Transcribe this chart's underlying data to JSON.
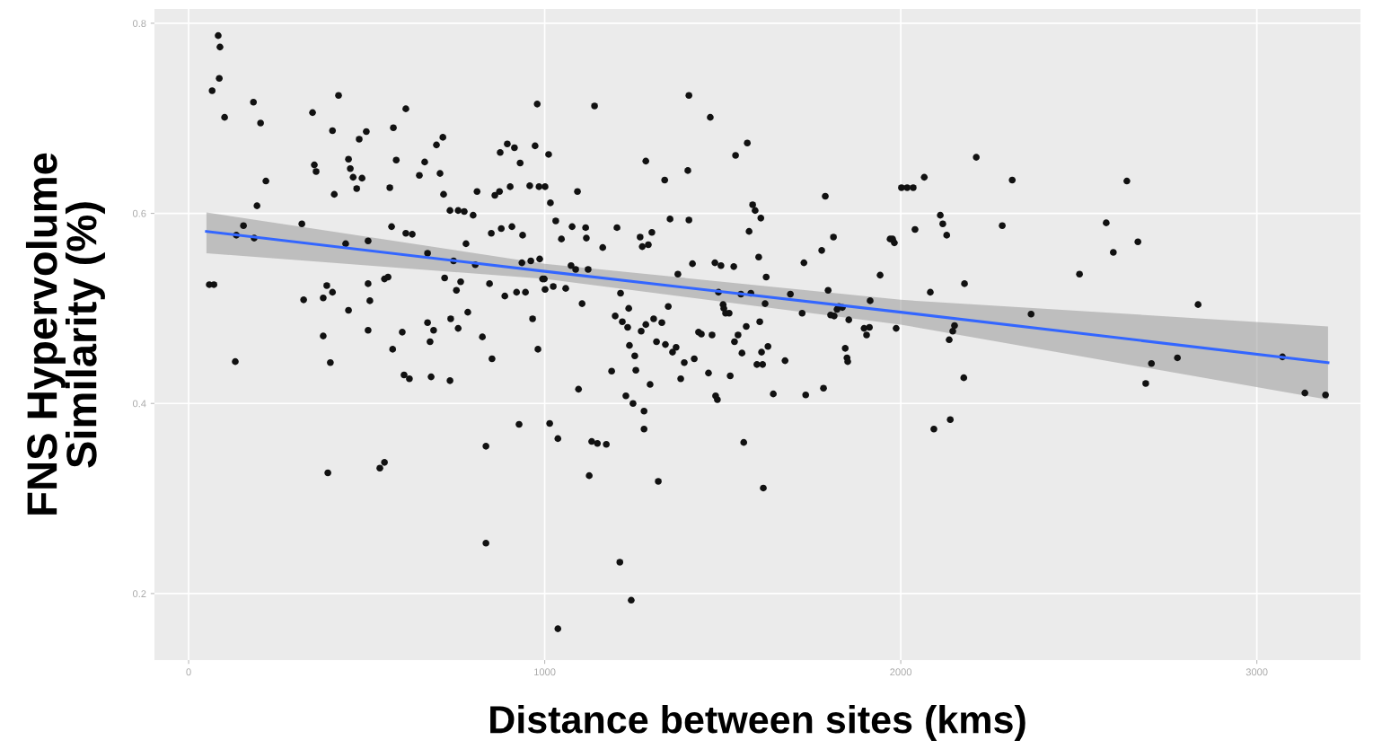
{
  "chart_data": {
    "type": "scatter",
    "xlabel": "Distance between sites (kms)",
    "ylabel": "FNS Hypervolume\nSimilarity (%)",
    "xlim": [
      -96,
      3291
    ],
    "ylim": [
      0.13,
      0.815
    ],
    "xticks": [
      0,
      1000,
      2000,
      3000
    ],
    "yticks": [
      0.2,
      0.4,
      0.6,
      0.8
    ],
    "grid": true,
    "series": [
      {
        "type": "scatter",
        "color": "#111111",
        "marker": "circle",
        "x": [
          58,
          71,
          66,
          83,
          88,
          86,
          101,
          131,
          134,
          154,
          182,
          202,
          192,
          217,
          184,
          318,
          323,
          348,
          353,
          358,
          378,
          378,
          388,
          391,
          398,
          404,
          404,
          409,
          421,
          441,
          449,
          449,
          454,
          462,
          472,
          479,
          487,
          499,
          504,
          509,
          504,
          504,
          537,
          550,
          550,
          560,
          570,
          565,
          573,
          575,
          583,
          600,
          605,
          610,
          610,
          628,
          620,
          648,
          671,
          663,
          671,
          678,
          688,
          681,
          696,
          706,
          714,
          716,
          719,
          734,
          734,
          736,
          744,
          752,
          757,
          757,
          764,
          774,
          779,
          784,
          799,
          805,
          810,
          825,
          835,
          835,
          845,
          850,
          852,
          860,
          873,
          875,
          878,
          888,
          895,
          903,
          908,
          915,
          921,
          928,
          931,
          936,
          938,
          946,
          958,
          961,
          966,
          973,
          979,
          981,
          984,
          986,
          994,
          999,
          1001,
          1001,
          1011,
          1014,
          1016,
          1024,
          1031,
          1037,
          1037,
          1047,
          1059,
          1074,
          1077,
          1087,
          1092,
          1095,
          1105,
          1115,
          1117,
          1122,
          1125,
          1132,
          1140,
          1148,
          1163,
          1173,
          1188,
          1198,
          1203,
          1211,
          1213,
          1218,
          1228,
          1233,
          1236,
          1238,
          1243,
          1248,
          1253,
          1256,
          1268,
          1271,
          1274,
          1279,
          1279,
          1284,
          1284,
          1291,
          1296,
          1301,
          1306,
          1314,
          1319,
          1329,
          1337,
          1339,
          1347,
          1352,
          1359,
          1369,
          1374,
          1382,
          1392,
          1402,
          1405,
          1405,
          1415,
          1420,
          1432,
          1440,
          1460,
          1465,
          1470,
          1478,
          1480,
          1485,
          1488,
          1495,
          1501,
          1503,
          1508,
          1518,
          1521,
          1531,
          1533,
          1536,
          1543,
          1551,
          1554,
          1559,
          1566,
          1569,
          1574,
          1579,
          1584,
          1591,
          1596,
          1601,
          1604,
          1607,
          1609,
          1612,
          1614,
          1619,
          1622,
          1627,
          1642,
          1675,
          1690,
          1723,
          1728,
          1733,
          1778,
          1783,
          1788,
          1796,
          1803,
          1811,
          1813,
          1821,
          1826,
          1836,
          1844,
          1849,
          1854,
          1851,
          1897,
          1904,
          1912,
          1914,
          1942,
          1970,
          1977,
          1982,
          1987,
          2002,
          2018,
          2035,
          2040,
          2066,
          2083,
          2093,
          2111,
          2118,
          2129,
          2136,
          2139,
          2146,
          2151,
          2177,
          2179,
          2212,
          2285,
          2313,
          2366,
          2502,
          2577,
          2597,
          2635,
          2666,
          2688,
          2704,
          2777,
          2835,
          3072,
          3135,
          3193
        ],
        "values": [
          0.525,
          0.525,
          0.729,
          0.787,
          0.775,
          0.742,
          0.701,
          0.444,
          0.577,
          0.587,
          0.717,
          0.695,
          0.608,
          0.634,
          0.574,
          0.589,
          0.509,
          0.706,
          0.651,
          0.644,
          0.511,
          0.471,
          0.524,
          0.327,
          0.443,
          0.517,
          0.687,
          0.62,
          0.724,
          0.568,
          0.498,
          0.657,
          0.647,
          0.638,
          0.626,
          0.678,
          0.637,
          0.686,
          0.526,
          0.508,
          0.571,
          0.477,
          0.332,
          0.338,
          0.531,
          0.533,
          0.586,
          0.627,
          0.457,
          0.69,
          0.656,
          0.475,
          0.43,
          0.71,
          0.579,
          0.578,
          0.426,
          0.64,
          0.485,
          0.654,
          0.558,
          0.465,
          0.477,
          0.428,
          0.672,
          0.642,
          0.68,
          0.62,
          0.532,
          0.424,
          0.603,
          0.489,
          0.55,
          0.519,
          0.603,
          0.479,
          0.528,
          0.602,
          0.568,
          0.496,
          0.598,
          0.546,
          0.623,
          0.47,
          0.355,
          0.253,
          0.526,
          0.579,
          0.447,
          0.619,
          0.623,
          0.664,
          0.584,
          0.513,
          0.673,
          0.628,
          0.586,
          0.669,
          0.517,
          0.378,
          0.653,
          0.548,
          0.577,
          0.517,
          0.629,
          0.55,
          0.489,
          0.671,
          0.715,
          0.457,
          0.628,
          0.552,
          0.531,
          0.531,
          0.52,
          0.628,
          0.662,
          0.379,
          0.611,
          0.523,
          0.592,
          0.363,
          0.163,
          0.573,
          0.521,
          0.545,
          0.586,
          0.541,
          0.623,
          0.415,
          0.505,
          0.585,
          0.574,
          0.541,
          0.324,
          0.36,
          0.713,
          0.358,
          0.564,
          0.357,
          0.434,
          0.492,
          0.585,
          0.233,
          0.516,
          0.486,
          0.408,
          0.48,
          0.5,
          0.461,
          0.193,
          0.4,
          0.45,
          0.435,
          0.575,
          0.476,
          0.565,
          0.373,
          0.392,
          0.655,
          0.483,
          0.567,
          0.42,
          0.58,
          0.489,
          0.465,
          0.318,
          0.485,
          0.635,
          0.462,
          0.502,
          0.594,
          0.454,
          0.459,
          0.536,
          0.426,
          0.443,
          0.645,
          0.724,
          0.593,
          0.547,
          0.447,
          0.475,
          0.473,
          0.432,
          0.701,
          0.472,
          0.548,
          0.408,
          0.404,
          0.517,
          0.545,
          0.504,
          0.5,
          0.495,
          0.495,
          0.429,
          0.544,
          0.465,
          0.661,
          0.472,
          0.515,
          0.453,
          0.359,
          0.481,
          0.674,
          0.581,
          0.516,
          0.609,
          0.603,
          0.441,
          0.554,
          0.486,
          0.595,
          0.454,
          0.441,
          0.311,
          0.505,
          0.533,
          0.46,
          0.41,
          0.445,
          0.515,
          0.495,
          0.548,
          0.409,
          0.561,
          0.416,
          0.618,
          0.519,
          0.493,
          0.575,
          0.492,
          0.499,
          0.502,
          0.501,
          0.458,
          0.448,
          0.488,
          0.444,
          0.479,
          0.472,
          0.48,
          0.508,
          0.535,
          0.573,
          0.573,
          0.569,
          0.479,
          0.627,
          0.627,
          0.627,
          0.583,
          0.638,
          0.517,
          0.373,
          0.598,
          0.589,
          0.577,
          0.467,
          0.383,
          0.476,
          0.482,
          0.427,
          0.526,
          0.659,
          0.587,
          0.635,
          0.494,
          0.536,
          0.59,
          0.559,
          0.634,
          0.57,
          0.421,
          0.442,
          0.448,
          0.504,
          0.449,
          0.411,
          0.409
        ]
      },
      {
        "type": "line",
        "color": "#3366ff",
        "x": [
          50,
          1000,
          2000,
          3200
        ],
        "values": [
          0.581,
          0.539,
          0.496,
          0.443
        ],
        "lower": [
          0.558,
          0.531,
          0.483,
          0.404
        ],
        "upper": [
          0.601,
          0.547,
          0.509,
          0.481
        ]
      }
    ]
  }
}
